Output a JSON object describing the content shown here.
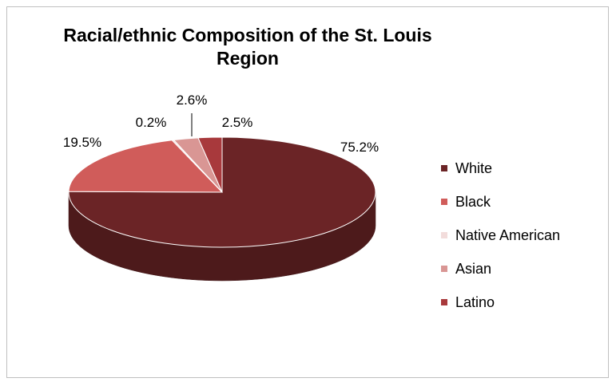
{
  "chart_data": {
    "type": "pie",
    "title": "Racial/ethnic Composition of the St. Louis Region",
    "categories": [
      "White",
      "Black",
      "Native American",
      "Asian",
      "Latino"
    ],
    "values": [
      75.2,
      19.5,
      0.2,
      2.6,
      2.5
    ],
    "value_labels": [
      "75.2%",
      "19.5%",
      "0.2%",
      "2.6%",
      "2.5%"
    ],
    "legend_position": "right",
    "colors": {
      "White": "#6b2426",
      "Black": "#d05c5a",
      "Native American": "#f2dcdb",
      "Asian": "#d99694",
      "Latino": "#a8393c"
    }
  }
}
